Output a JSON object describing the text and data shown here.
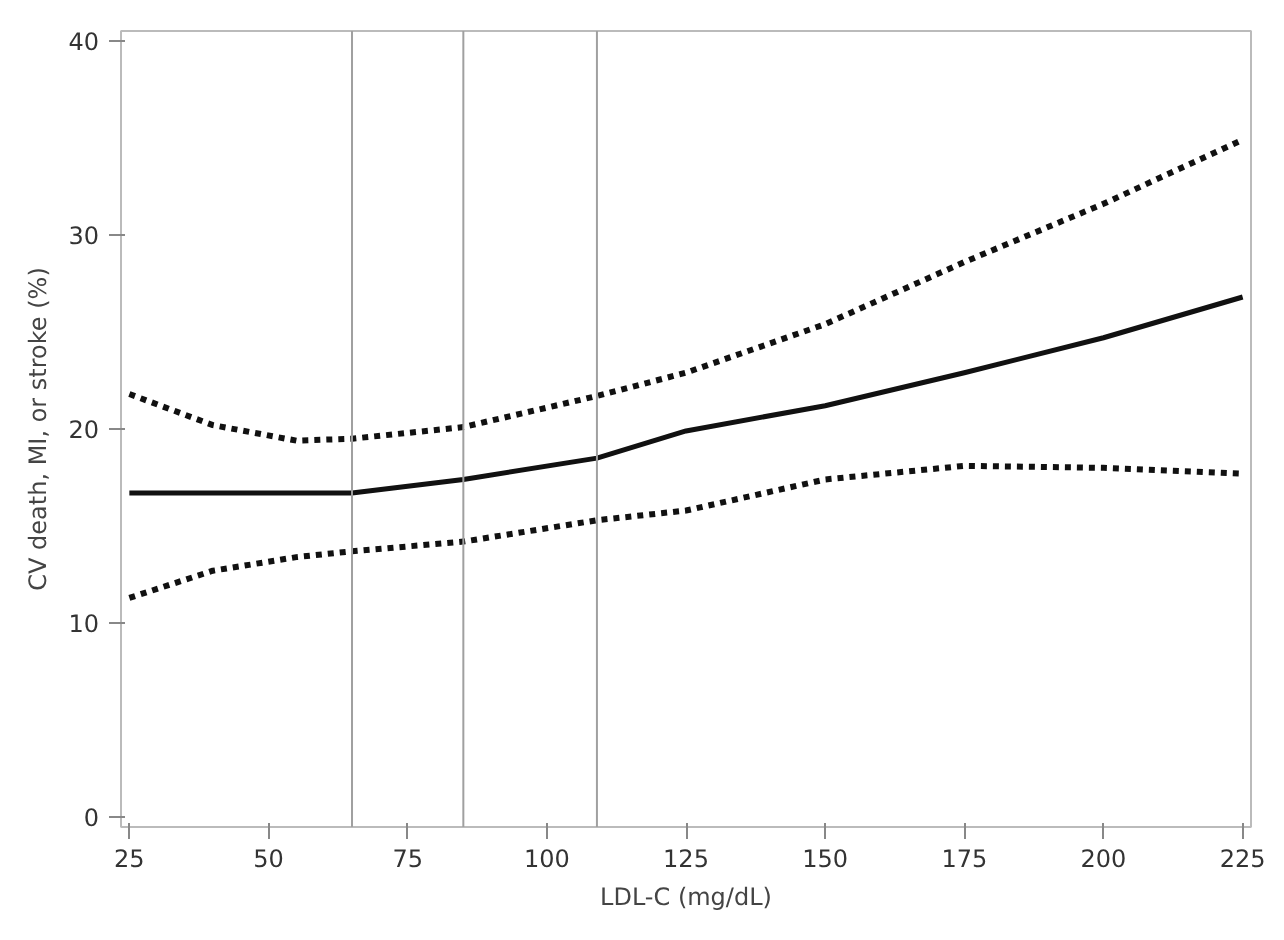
{
  "chart_data": {
    "type": "line",
    "xlabel": "LDL-C (mg/dL)",
    "ylabel": "CV death, MI, or stroke (%)",
    "x": [
      25,
      40,
      55,
      65,
      85,
      109,
      125,
      150,
      175,
      200,
      225
    ],
    "series": [
      {
        "color": "#111111",
        "line_style": "solid",
        "values": [
          16.7,
          16.7,
          16.7,
          16.7,
          17.4,
          18.5,
          19.9,
          21.2,
          22.9,
          24.7,
          26.8
        ]
      },
      {
        "color": "#111111",
        "line_style": "dotted",
        "values": [
          21.8,
          20.2,
          19.4,
          19.5,
          20.1,
          21.7,
          22.9,
          25.4,
          28.6,
          31.6,
          34.9
        ]
      },
      {
        "color": "#111111",
        "line_style": "dotted",
        "values": [
          11.3,
          12.7,
          13.4,
          13.7,
          14.2,
          15.3,
          15.8,
          17.4,
          18.1,
          18.0,
          17.7
        ]
      }
    ],
    "ref_lines": [
      {
        "axis": "x",
        "value": 65,
        "color": "#a0a0a0"
      },
      {
        "axis": "x",
        "value": 85,
        "color": "#a0a0a0"
      },
      {
        "axis": "x",
        "value": 109,
        "color": "#a0a0a0"
      }
    ],
    "xlim": [
      23.5,
      226.5
    ],
    "ylim": [
      -0.5,
      40.5
    ],
    "xticks": [
      25,
      50,
      75,
      100,
      125,
      150,
      175,
      200,
      225
    ],
    "yticks": [
      0,
      10,
      20,
      30,
      40
    ],
    "grid": false,
    "marker": "none"
  }
}
